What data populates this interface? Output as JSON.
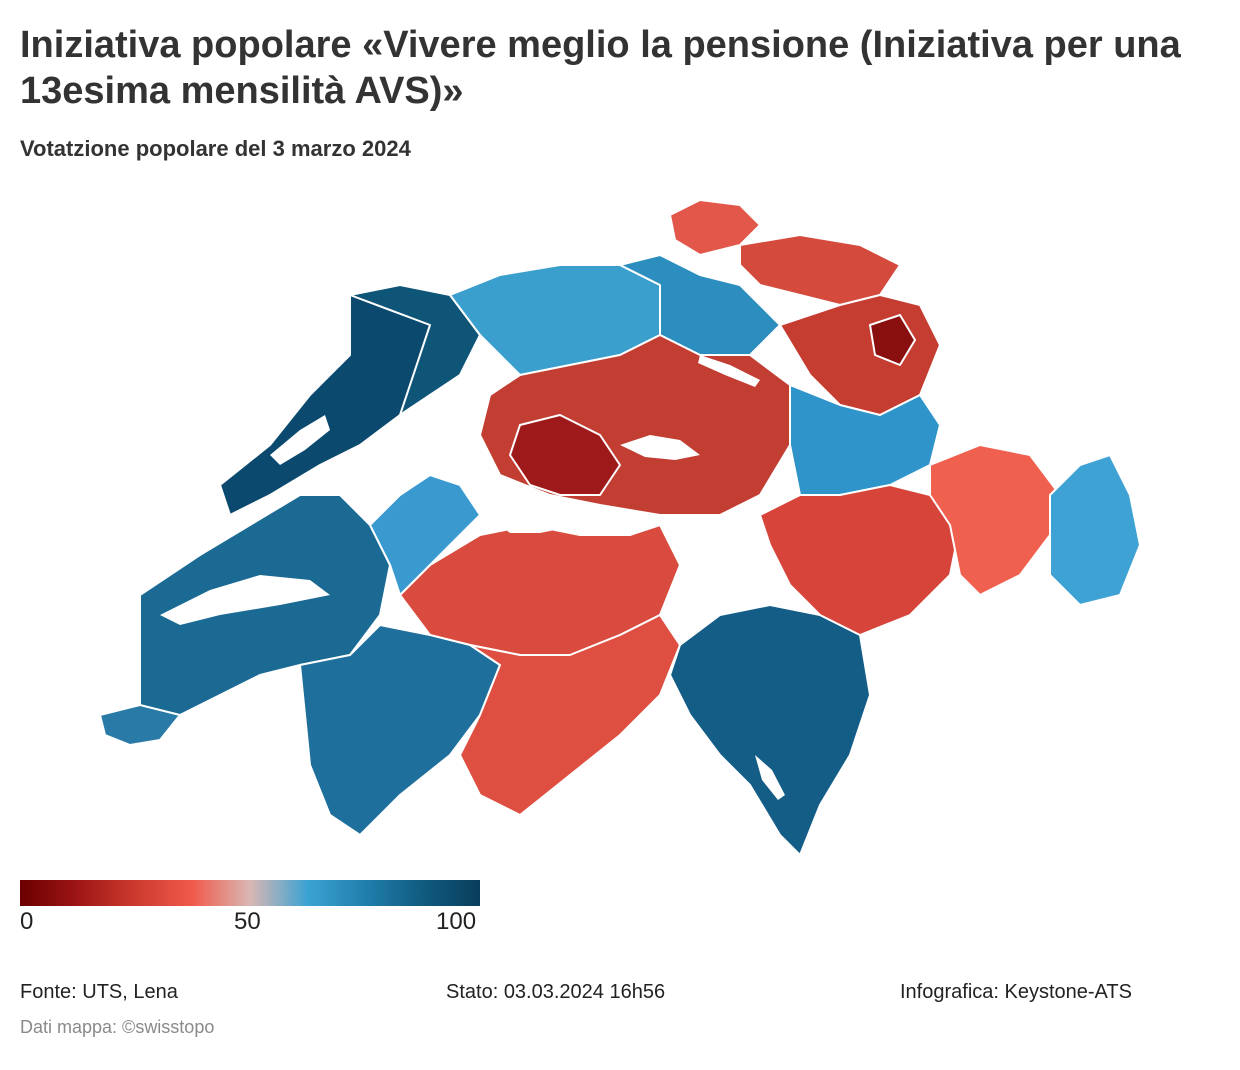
{
  "title": "Iniziativa popolare «Vivere meglio la pensione (Iniziativa per una 13esima mensilità AVS)»",
  "subtitle": "Votatzione popolare del 3 marzo 2024",
  "legend": {
    "ticks": [
      "0",
      "50",
      "100"
    ],
    "colors": [
      "#6b0000",
      "#9e1515",
      "#cc3a2e",
      "#f05a4b",
      "#d9b7b3",
      "#3ba3d3",
      "#217fad",
      "#0f5b80",
      "#0a3d5c"
    ]
  },
  "map": {
    "regions": [
      {
        "name": "geneva",
        "color": "#2a7aa8"
      },
      {
        "name": "vaud",
        "color": "#1a6a94"
      },
      {
        "name": "jura-neuchatel",
        "color": "#0b4a6e"
      },
      {
        "name": "jura-arc",
        "color": "#0e5578"
      },
      {
        "name": "basel-solothurn",
        "color": "#3b9fce"
      },
      {
        "name": "aargau-zurich-west",
        "color": "#2c8dbf"
      },
      {
        "name": "schaffhausen",
        "color": "#e2574a"
      },
      {
        "name": "thurgau",
        "color": "#d44a3d"
      },
      {
        "name": "st-gallen",
        "color": "#c53c30"
      },
      {
        "name": "appenzell",
        "color": "#8a0f0f"
      },
      {
        "name": "central-switzerland",
        "color": "#c23e33"
      },
      {
        "name": "emmental-entlebuch",
        "color": "#9e1a1a"
      },
      {
        "name": "bernese-oberland",
        "color": "#d94b3e"
      },
      {
        "name": "fribourg",
        "color": "#3a9ad0"
      },
      {
        "name": "valais-lower",
        "color": "#1f6f9c"
      },
      {
        "name": "valais-upper",
        "color": "#de4f42"
      },
      {
        "name": "ticino",
        "color": "#135d86"
      },
      {
        "name": "glarus-north-grisons",
        "color": "#2f94c9"
      },
      {
        "name": "grisons-central",
        "color": "#d6443a"
      },
      {
        "name": "grisons-east",
        "color": "#f0604f"
      },
      {
        "name": "grisons-southeast",
        "color": "#3fa2d4"
      }
    ]
  },
  "footer": {
    "source": "Fonte: UTS, Lena",
    "status": "Stato: 03.03.2024 16h56",
    "graphics": "Infografica: Keystone-ATS",
    "map_credit": "Dati mappa: ©swisstopo"
  }
}
